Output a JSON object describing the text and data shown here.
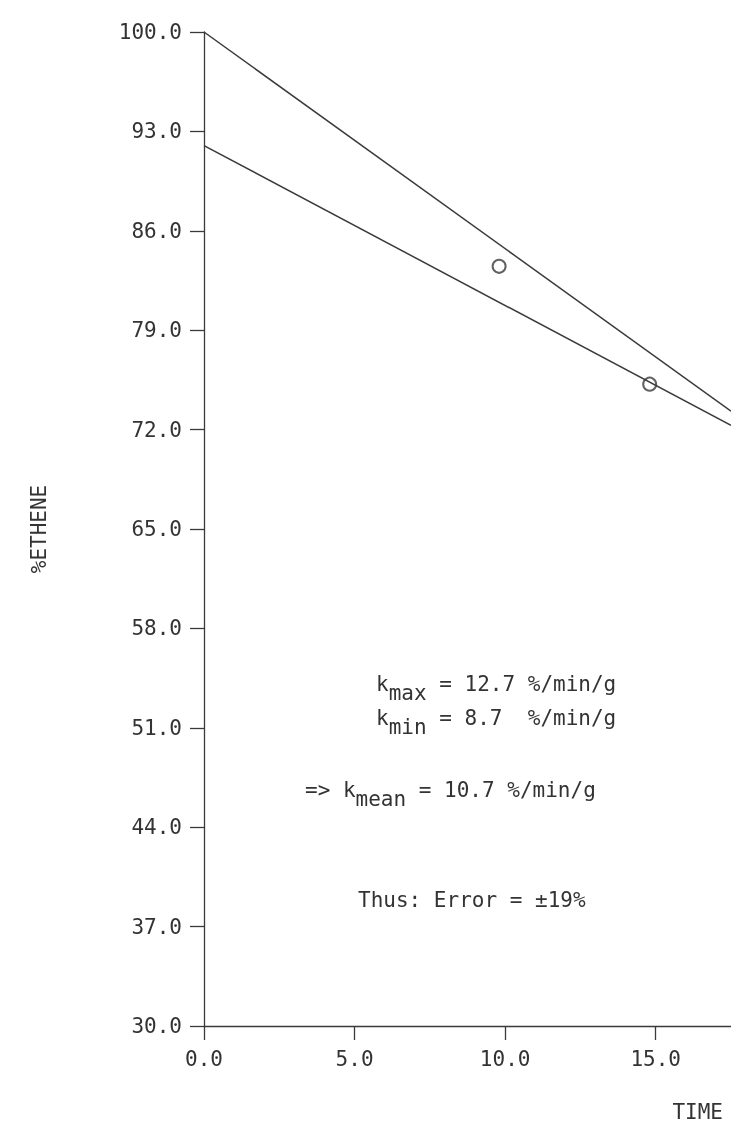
{
  "chart_data": {
    "type": "line",
    "xlabel": "TIME",
    "ylabel": "%ETHENE",
    "xlim": [
      0,
      17.5
    ],
    "xticks": [
      {
        "value": 0,
        "label": "0.0"
      },
      {
        "value": 5,
        "label": "5.0"
      },
      {
        "value": 10,
        "label": "10.0"
      },
      {
        "value": 15,
        "label": "15.0"
      }
    ],
    "ylim": [
      30,
      100
    ],
    "yticks": [
      {
        "value": 30,
        "label": "30.0"
      },
      {
        "value": 37,
        "label": "37.0"
      },
      {
        "value": 44,
        "label": "44.0"
      },
      {
        "value": 51,
        "label": "51.0"
      },
      {
        "value": 58,
        "label": "58.0"
      },
      {
        "value": 65,
        "label": "65.0"
      },
      {
        "value": 72,
        "label": "72.0"
      },
      {
        "value": 79,
        "label": "79.0"
      },
      {
        "value": 86,
        "label": "86.0"
      },
      {
        "value": 93,
        "label": "93.0"
      },
      {
        "value": 100,
        "label": "100.0"
      }
    ],
    "series": [
      {
        "color": "#3a3a3a",
        "x": [
          0,
          17.5
        ],
        "values": [
          100,
          73.3
        ],
        "marker": "none"
      },
      {
        "color": "#3a3a3a",
        "x": [
          0,
          17.5
        ],
        "values": [
          92,
          72.3
        ],
        "marker": "none"
      },
      {
        "type": "scatter",
        "color": "#3a3a3a",
        "x": [
          9.8,
          14.8
        ],
        "values": [
          83.5,
          75.2
        ],
        "marker": "circle"
      }
    ],
    "annotations": [
      "k$_{max}$ = 12.7 %/min/g",
      "k$_{min}$ = 8.7  %/min/g",
      "=> k$_{mean}$ = 10.7 %/min/g",
      "Thus: Error = ±19%"
    ],
    "grid": false
  }
}
